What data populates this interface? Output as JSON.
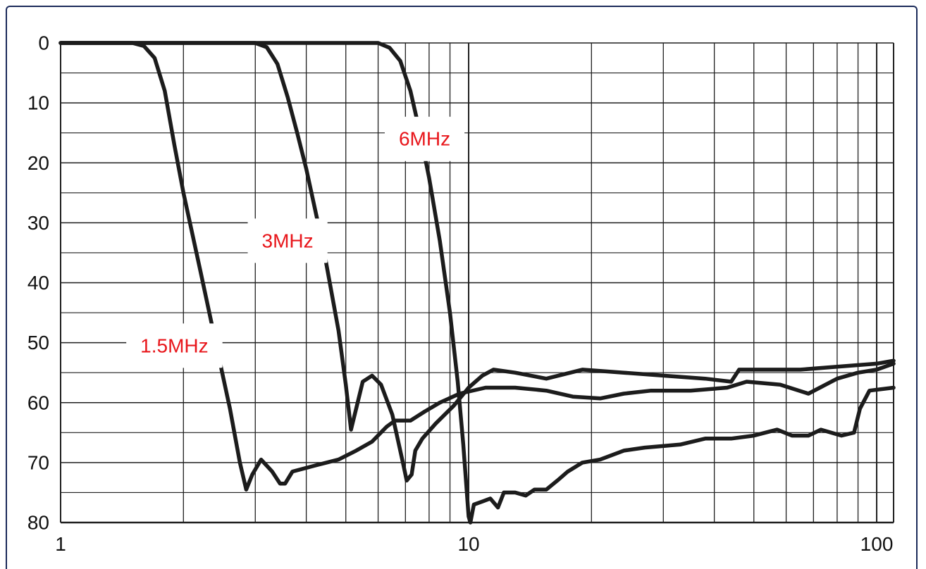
{
  "chart_data": {
    "type": "line",
    "title": "",
    "xlabel": "",
    "ylabel": "",
    "x_scale": "log",
    "xlim": [
      1,
      110
    ],
    "ylim": [
      0,
      80
    ],
    "y_inverted": true,
    "grid": true,
    "x_ticks": [
      {
        "value": 1,
        "label": "1"
      },
      {
        "value": 10,
        "label": "10"
      },
      {
        "value": 100,
        "label": "100"
      }
    ],
    "y_ticks": [
      {
        "value": 0,
        "label": "0"
      },
      {
        "value": 10,
        "label": "10"
      },
      {
        "value": 20,
        "label": "20"
      },
      {
        "value": 30,
        "label": "30"
      },
      {
        "value": 40,
        "label": "40"
      },
      {
        "value": 50,
        "label": "50"
      },
      {
        "value": 60,
        "label": "60"
      },
      {
        "value": 70,
        "label": "70"
      },
      {
        "value": 80,
        "label": "80"
      }
    ],
    "series": [
      {
        "name": "1.5MHz",
        "label_at": [
          1.9,
          50.5
        ],
        "points": [
          [
            1,
            0
          ],
          [
            1.5,
            0
          ],
          [
            1.6,
            0.5
          ],
          [
            1.7,
            2.5
          ],
          [
            1.8,
            8
          ],
          [
            1.9,
            17
          ],
          [
            2.0,
            25
          ],
          [
            2.2,
            38
          ],
          [
            2.4,
            50
          ],
          [
            2.6,
            61
          ],
          [
            2.75,
            70
          ],
          [
            2.85,
            74.5
          ],
          [
            2.95,
            72
          ],
          [
            3.1,
            69.5
          ],
          [
            3.3,
            71.5
          ],
          [
            3.45,
            73.5
          ],
          [
            3.55,
            73.5
          ],
          [
            3.7,
            71.5
          ],
          [
            4.2,
            70.5
          ],
          [
            4.8,
            69.5
          ],
          [
            5.3,
            68
          ],
          [
            5.8,
            66.5
          ],
          [
            6.3,
            64
          ],
          [
            6.6,
            63
          ],
          [
            7.2,
            63
          ],
          [
            7.8,
            61.5
          ],
          [
            8.5,
            60
          ],
          [
            9.5,
            58.5
          ],
          [
            11,
            57.5
          ],
          [
            13,
            57.5
          ],
          [
            15.5,
            58
          ],
          [
            18,
            59
          ],
          [
            21,
            59.3
          ],
          [
            24,
            58.5
          ],
          [
            28,
            58
          ],
          [
            35,
            58
          ],
          [
            43,
            57.5
          ],
          [
            48,
            56.5
          ],
          [
            58,
            57
          ],
          [
            68,
            58.5
          ],
          [
            80,
            56
          ],
          [
            90,
            55
          ],
          [
            100,
            54.5
          ],
          [
            110,
            53.5
          ]
        ]
      },
      {
        "name": "3MHz",
        "label_at": [
          3.6,
          33
        ],
        "points": [
          [
            1,
            0
          ],
          [
            3.0,
            0
          ],
          [
            3.2,
            0.7
          ],
          [
            3.4,
            3.5
          ],
          [
            3.6,
            9
          ],
          [
            3.8,
            15
          ],
          [
            4.0,
            21
          ],
          [
            4.4,
            34
          ],
          [
            4.8,
            48
          ],
          [
            5.0,
            57
          ],
          [
            5.15,
            64.5
          ],
          [
            5.3,
            61
          ],
          [
            5.5,
            56.5
          ],
          [
            5.8,
            55.5
          ],
          [
            6.1,
            57
          ],
          [
            6.5,
            62
          ],
          [
            6.9,
            70
          ],
          [
            7.05,
            73
          ],
          [
            7.25,
            72
          ],
          [
            7.4,
            68
          ],
          [
            7.7,
            66
          ],
          [
            8.3,
            63.5
          ],
          [
            9.2,
            60.5
          ],
          [
            10,
            57.5
          ],
          [
            10.8,
            55.5
          ],
          [
            11.5,
            54.5
          ],
          [
            13,
            55
          ],
          [
            15.5,
            56
          ],
          [
            19,
            54.5
          ],
          [
            24,
            55
          ],
          [
            30,
            55.5
          ],
          [
            38,
            56
          ],
          [
            44,
            56.5
          ],
          [
            46,
            54.5
          ],
          [
            55,
            54.5
          ],
          [
            65,
            54.5
          ],
          [
            80,
            54
          ],
          [
            100,
            53.5
          ],
          [
            110,
            53
          ]
        ]
      },
      {
        "name": "6MHz",
        "label_at": [
          7.8,
          16
        ],
        "points": [
          [
            1,
            0
          ],
          [
            6.0,
            0
          ],
          [
            6.4,
            0.8
          ],
          [
            6.8,
            3
          ],
          [
            7.2,
            8
          ],
          [
            7.6,
            15
          ],
          [
            8.0,
            22.5
          ],
          [
            8.5,
            33
          ],
          [
            9.0,
            45
          ],
          [
            9.4,
            56.5
          ],
          [
            9.7,
            67
          ],
          [
            10.0,
            79
          ],
          [
            10.1,
            80
          ],
          [
            10.3,
            77
          ],
          [
            10.8,
            76.5
          ],
          [
            11.3,
            76
          ],
          [
            11.8,
            77.5
          ],
          [
            12.2,
            75
          ],
          [
            13,
            75
          ],
          [
            13.8,
            75.5
          ],
          [
            14.5,
            74.5
          ],
          [
            15.5,
            74.5
          ],
          [
            16.5,
            73
          ],
          [
            17.5,
            71.5
          ],
          [
            19,
            70
          ],
          [
            21,
            69.5
          ],
          [
            24,
            68
          ],
          [
            27,
            67.5
          ],
          [
            33,
            67
          ],
          [
            38,
            66
          ],
          [
            44,
            66
          ],
          [
            50,
            65.5
          ],
          [
            57,
            64.5
          ],
          [
            62,
            65.5
          ],
          [
            68,
            65.5
          ],
          [
            73,
            64.5
          ],
          [
            82,
            65.5
          ],
          [
            88,
            65
          ],
          [
            91,
            61
          ],
          [
            96,
            58
          ],
          [
            110,
            57.5
          ]
        ]
      }
    ]
  },
  "colors": {
    "line": "#1c1c1c",
    "grid": "#1f1f1f",
    "series_label": "#e8161b",
    "label_box": "#ffffff",
    "frame": "#1b2a5a"
  }
}
